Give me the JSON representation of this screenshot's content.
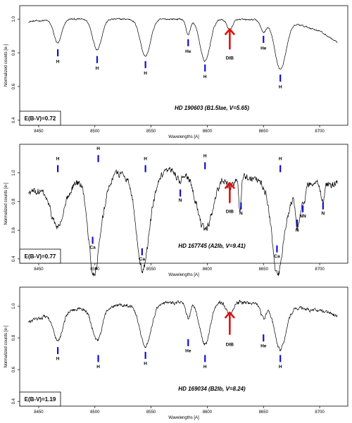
{
  "chart_data": [
    {
      "type": "line",
      "title": "HD 190603 (B1.5Iae, V=5.65)",
      "ebv": "E(B-V)=0.72",
      "xlabel": "Wavelengths [A]",
      "ylabel": "Normalized counts [e-]",
      "xlim": [
        8440,
        8720
      ],
      "ylim": [
        0.37,
        1.08
      ],
      "xticks": [
        "8450",
        "8500",
        "8550",
        "8600",
        "8650",
        "8700"
      ],
      "yticks": [
        "0.4",
        "0.6",
        "0.8",
        "1.0"
      ],
      "noise": 0.004,
      "continuum": [
        [
          8441,
          0.985
        ],
        [
          8470,
          1.0
        ],
        [
          8530,
          1.0
        ],
        [
          8600,
          1.0
        ],
        [
          8650,
          0.995
        ],
        [
          8680,
          0.97
        ],
        [
          8700,
          0.93
        ],
        [
          8716,
          0.86
        ]
      ],
      "features": [
        {
          "center": 8467,
          "depth": 0.14,
          "width": 3.5
        },
        {
          "center": 8502,
          "depth": 0.18,
          "width": 4
        },
        {
          "center": 8545,
          "depth": 0.22,
          "width": 4.5
        },
        {
          "center": 8583,
          "depth": 0.09,
          "width": 2
        },
        {
          "center": 8598,
          "depth": 0.25,
          "width": 4.5
        },
        {
          "center": 8620,
          "depth": 0.06,
          "width": 2.5
        },
        {
          "center": 8650,
          "depth": 0.07,
          "width": 2.5
        },
        {
          "center": 8665,
          "depth": 0.28,
          "width": 5
        }
      ],
      "line_labels": [
        {
          "label": "H",
          "wl": 8467,
          "y_mark": 0.8,
          "y_text": 0.74
        },
        {
          "label": "H",
          "wl": 8502,
          "y_mark": 0.76,
          "y_text": 0.7
        },
        {
          "label": "H",
          "wl": 8545,
          "y_mark": 0.73,
          "y_text": 0.67
        },
        {
          "label": "He",
          "wl": 8583,
          "y_mark": 0.86,
          "y_text": 0.8
        },
        {
          "label": "H",
          "wl": 8598,
          "y_mark": 0.71,
          "y_text": 0.65
        },
        {
          "label": "He",
          "wl": 8650,
          "y_mark": 0.88,
          "y_text": 0.82
        },
        {
          "label": "H",
          "wl": 8665,
          "y_mark": 0.65,
          "y_text": 0.59
        }
      ],
      "dib": {
        "label": "DIB",
        "wl": 8620,
        "y_tail": 0.82,
        "y_tip": 0.94,
        "y_text": 0.76
      }
    },
    {
      "type": "line",
      "title": "HD 167745 (A2Ib, V=9.41)",
      "ebv": "E(B-V)=0.77",
      "xlabel": "Wavelengths [A]",
      "ylabel": "Normalized counts [e-]",
      "xlim": [
        8440,
        8720
      ],
      "ylim": [
        0.37,
        1.2
      ],
      "xticks": [
        "8450",
        "8500",
        "8550",
        "8600",
        "8650",
        "8700"
      ],
      "yticks": [
        "0.4",
        "0.6",
        "0.8",
        "1.0"
      ],
      "noise": 0.022,
      "continuum": [
        [
          8441,
          0.86
        ],
        [
          8460,
          0.89
        ],
        [
          8490,
          0.95
        ],
        [
          8520,
          1.0
        ],
        [
          8560,
          1.02
        ],
        [
          8600,
          1.0
        ],
        [
          8640,
          0.97
        ],
        [
          8670,
          0.93
        ],
        [
          8700,
          0.92
        ],
        [
          8716,
          0.93
        ]
      ],
      "features": [
        {
          "center": 8467,
          "depth": 0.28,
          "width": 6
        },
        {
          "center": 8498,
          "depth": 0.35,
          "width": 4
        },
        {
          "center": 8502,
          "depth": 0.38,
          "width": 6
        },
        {
          "center": 8542,
          "depth": 0.45,
          "width": 5
        },
        {
          "center": 8545,
          "depth": 0.25,
          "width": 8
        },
        {
          "center": 8575,
          "depth": 0.07,
          "width": 2
        },
        {
          "center": 8598,
          "depth": 0.4,
          "width": 7
        },
        {
          "center": 8620,
          "depth": 0.08,
          "width": 3
        },
        {
          "center": 8629,
          "depth": 0.25,
          "width": 1.2
        },
        {
          "center": 8662,
          "depth": 0.38,
          "width": 4
        },
        {
          "center": 8665,
          "depth": 0.3,
          "width": 8
        },
        {
          "center": 8680,
          "depth": 0.25,
          "width": 1.5
        },
        {
          "center": 8683,
          "depth": 0.15,
          "width": 1.2
        },
        {
          "center": 8686,
          "depth": 0.15,
          "width": 1.2
        },
        {
          "center": 8703,
          "depth": 0.12,
          "width": 1.5
        }
      ],
      "line_labels": [
        {
          "label": "H",
          "wl": 8467,
          "y_mark": 1.03,
          "y_text": 1.09
        },
        {
          "label": "H",
          "wl": 8503,
          "y_mark": 1.1,
          "y_text": 1.16
        },
        {
          "label": "Ca",
          "wl": 8498,
          "y_mark": 0.53,
          "y_text": 0.47
        },
        {
          "label": "H",
          "wl": 8545,
          "y_mark": 1.03,
          "y_text": 1.09
        },
        {
          "label": "Ca",
          "wl": 8542,
          "y_mark": 0.45,
          "y_text": 0.39
        },
        {
          "label": "N",
          "wl": 8576,
          "y_mark": 0.86,
          "y_text": 0.8
        },
        {
          "label": "H",
          "wl": 8598,
          "y_mark": 1.05,
          "y_text": 1.11
        },
        {
          "label": "N",
          "wl": 8630,
          "y_mark": 0.77,
          "y_text": 0.71
        },
        {
          "label": "H",
          "wl": 8665,
          "y_mark": 1.03,
          "y_text": 1.09
        },
        {
          "label": "Ca",
          "wl": 8662,
          "y_mark": 0.47,
          "y_text": 0.41
        },
        {
          "label": "N",
          "wl": 8680,
          "y_mark": 0.65,
          "y_text": 0.59
        },
        {
          "label": "NN",
          "wl": 8685,
          "y_mark": 0.75,
          "y_text": 0.69
        },
        {
          "label": "N",
          "wl": 8703,
          "y_mark": 0.77,
          "y_text": 0.71
        }
      ],
      "dib": {
        "label": "DIB",
        "wl": 8620,
        "y_tail": 0.79,
        "y_tip": 0.93,
        "y_text": 0.72
      }
    },
    {
      "type": "line",
      "title": "HD 169034 (B2Ib, V=8.24)",
      "ebv": "E(B-V)=1.19",
      "xlabel": "Wavelengths [A]",
      "ylabel": "Normalized counts [e-]",
      "xlim": [
        8440,
        8720
      ],
      "ylim": [
        0.37,
        1.12
      ],
      "xticks": [
        "8450",
        "8500",
        "8550",
        "8600",
        "8650",
        "8700"
      ],
      "yticks": [
        "0.4",
        "0.6",
        "0.8",
        "1.0"
      ],
      "noise": 0.01,
      "continuum": [
        [
          8441,
          0.9
        ],
        [
          8460,
          0.95
        ],
        [
          8500,
          1.0
        ],
        [
          8560,
          1.02
        ],
        [
          8620,
          1.03
        ],
        [
          8660,
          1.01
        ],
        [
          8700,
          0.97
        ],
        [
          8716,
          0.94
        ]
      ],
      "features": [
        {
          "center": 8467,
          "depth": 0.18,
          "width": 4
        },
        {
          "center": 8502,
          "depth": 0.22,
          "width": 4.5
        },
        {
          "center": 8545,
          "depth": 0.27,
          "width": 5
        },
        {
          "center": 8583,
          "depth": 0.1,
          "width": 2
        },
        {
          "center": 8598,
          "depth": 0.27,
          "width": 4.5
        },
        {
          "center": 8620,
          "depth": 0.08,
          "width": 3
        },
        {
          "center": 8650,
          "depth": 0.09,
          "width": 2.5
        },
        {
          "center": 8665,
          "depth": 0.28,
          "width": 5
        }
      ],
      "line_labels": [
        {
          "label": "H",
          "wl": 8467,
          "y_mark": 0.72,
          "y_text": 0.66
        },
        {
          "label": "H",
          "wl": 8503,
          "y_mark": 0.67,
          "y_text": 0.61
        },
        {
          "label": "H",
          "wl": 8545,
          "y_mark": 0.69,
          "y_text": 0.63
        },
        {
          "label": "He",
          "wl": 8583,
          "y_mark": 0.77,
          "y_text": 0.71
        },
        {
          "label": "H",
          "wl": 8598,
          "y_mark": 0.67,
          "y_text": 0.61
        },
        {
          "label": "He",
          "wl": 8650,
          "y_mark": 0.8,
          "y_text": 0.74
        },
        {
          "label": "H",
          "wl": 8665,
          "y_mark": 0.67,
          "y_text": 0.61
        }
      ],
      "dib": {
        "label": "DIB",
        "wl": 8620,
        "y_tail": 0.82,
        "y_tip": 0.96,
        "y_text": 0.75
      }
    }
  ]
}
